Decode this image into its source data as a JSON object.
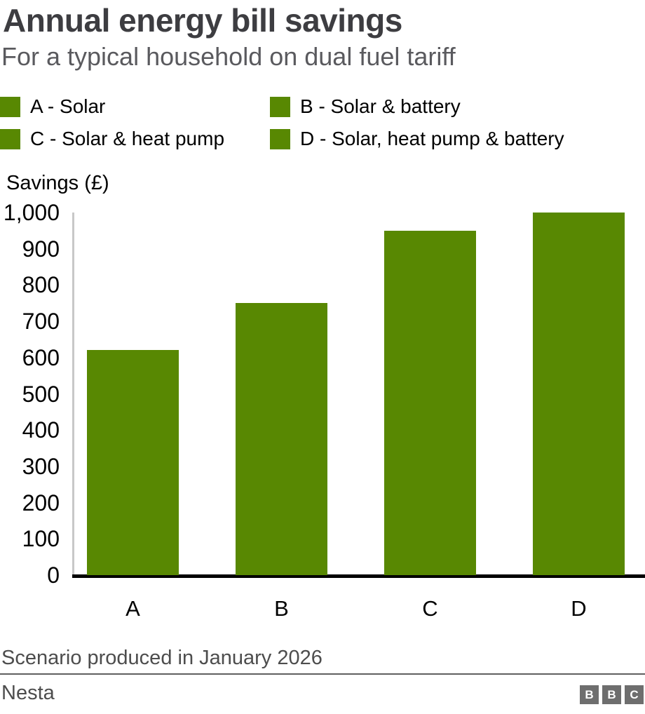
{
  "header": {
    "title": "Annual energy bill savings",
    "subtitle": "For a typical household on dual fuel tariff"
  },
  "legend": {
    "items": [
      {
        "key": "A",
        "label": "A - Solar"
      },
      {
        "key": "B",
        "label": "B - Solar & battery"
      },
      {
        "key": "C",
        "label": "C - Solar & heat pump"
      },
      {
        "key": "D",
        "label": "D - Solar, heat pump & battery"
      }
    ]
  },
  "chart_data": {
    "type": "bar",
    "title": "Annual energy bill savings",
    "subtitle": "For a typical household on dual fuel tariff",
    "categories": [
      "A",
      "B",
      "C",
      "D"
    ],
    "values": [
      620,
      750,
      950,
      1000
    ],
    "series": [
      {
        "name": "A - Solar",
        "value": 620
      },
      {
        "name": "B - Solar & battery",
        "value": 750
      },
      {
        "name": "C - Solar & heat pump",
        "value": 950
      },
      {
        "name": "D - Solar, heat pump & battery",
        "value": 1000
      }
    ],
    "xlabel": "",
    "ylabel": "Savings (£)",
    "ylim": [
      0,
      1000
    ],
    "ytick_interval": 100,
    "ytick_labels": [
      "1,000",
      "900",
      "800",
      "700",
      "600",
      "500",
      "400",
      "300",
      "200",
      "100",
      "0"
    ],
    "grid": false,
    "legend_position": "top",
    "bar_color": "#588802"
  },
  "footer": {
    "note": "Scenario produced in January 2026",
    "source": "Nesta",
    "logo_letters": [
      "B",
      "B",
      "C"
    ]
  },
  "colors": {
    "bar_green": "#588802",
    "title_text": "#3d3d41",
    "subtitle_text": "#5a5a5e",
    "legend_text": "#000000",
    "footer_text": "#4d4d4d",
    "x_axis_line": "#000000",
    "y_axis_line": "#c8c8c8",
    "divider": "#5f5f5f",
    "logo_block": "#6e6e6e"
  }
}
